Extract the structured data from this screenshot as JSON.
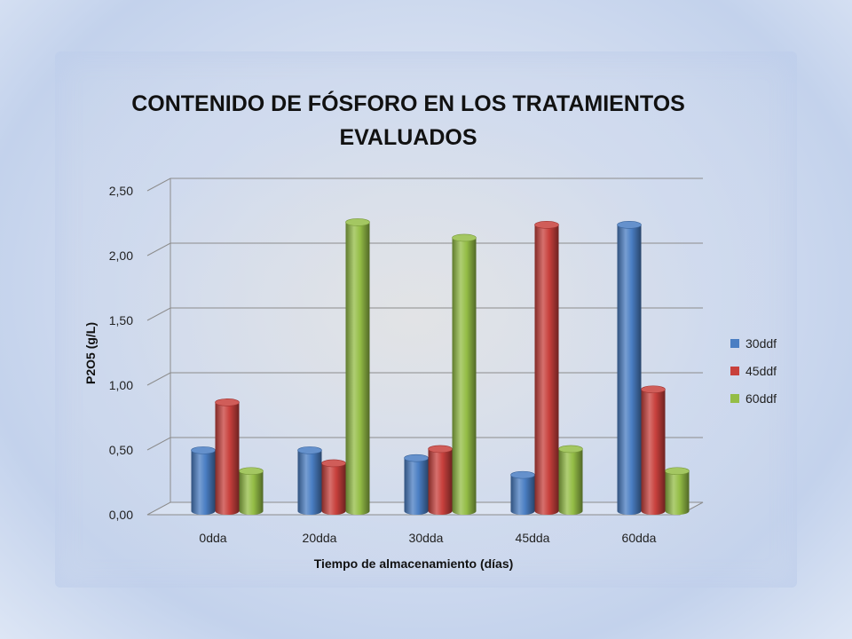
{
  "colors": {
    "30ddf": "#4a7ec3",
    "45ddf": "#c8403c",
    "60ddf": "#94bd46"
  },
  "chart_data": {
    "type": "bar",
    "title": "CONTENIDO DE FÓSFORO EN LOS TRATAMIENTOS EVALUADOS",
    "xlabel": "Tiempo de almacenamiento (días)",
    "ylabel": "P2O5 (g/L)",
    "categories": [
      "0dda",
      "20dda",
      "30dda",
      "45dda",
      "60dda"
    ],
    "series": [
      {
        "name": "30ddf",
        "values": [
          0.47,
          0.47,
          0.41,
          0.28,
          2.21
        ]
      },
      {
        "name": "45ddf",
        "values": [
          0.84,
          0.37,
          0.48,
          2.21,
          0.94
        ]
      },
      {
        "name": "60ddf",
        "values": [
          0.31,
          2.23,
          2.11,
          0.48,
          0.31
        ]
      }
    ],
    "ylim": [
      0,
      2.5
    ],
    "yticks": [
      "0,00",
      "0,50",
      "1,00",
      "1,50",
      "2,00",
      "2,50"
    ],
    "grid": true,
    "legend_position": "right"
  }
}
